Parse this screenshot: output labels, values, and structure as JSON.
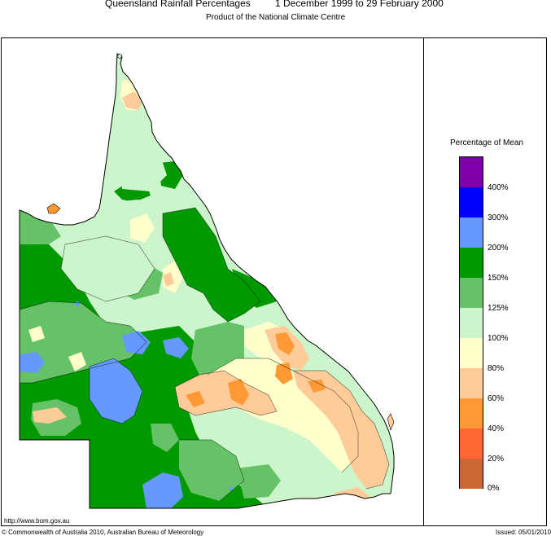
{
  "header": {
    "title": "Queensland Rainfall Percentages",
    "period": "1 December 1999 to 29 February 2000",
    "subtitle": "Product of the National Climate Centre"
  },
  "legend": {
    "title": "Percentage of Mean",
    "classes": [
      {
        "color": "#7f00a6",
        "range": "above 400%"
      },
      {
        "color": "#0000ff",
        "range": "300% to 400%"
      },
      {
        "color": "#6699ff",
        "range": "200% to 300%"
      },
      {
        "color": "#009900",
        "range": "150% to 200%"
      },
      {
        "color": "#66c266",
        "range": "125% to 150%"
      },
      {
        "color": "#ccf5cc",
        "range": "100% to 125%"
      },
      {
        "color": "#ffffcc",
        "range": "80% to 100%"
      },
      {
        "color": "#ffcc99",
        "range": "60% to 80%"
      },
      {
        "color": "#ff9933",
        "range": "40% to 60%"
      },
      {
        "color": "#ff6633",
        "range": "20% to 40%"
      },
      {
        "color": "#cc6633",
        "range": "0% to 20%"
      }
    ],
    "labels": [
      "400%",
      "300%",
      "200%",
      "150%",
      "125%",
      "100%",
      "80%",
      "60%",
      "40%",
      "20%",
      "0%"
    ]
  },
  "footer": {
    "url": "http://www.bom.gov.au",
    "copyright": "© Commonwealth of Australia 2010, Australian Bureau of Meteorology",
    "issued": "Issued: 05/01/2010"
  }
}
